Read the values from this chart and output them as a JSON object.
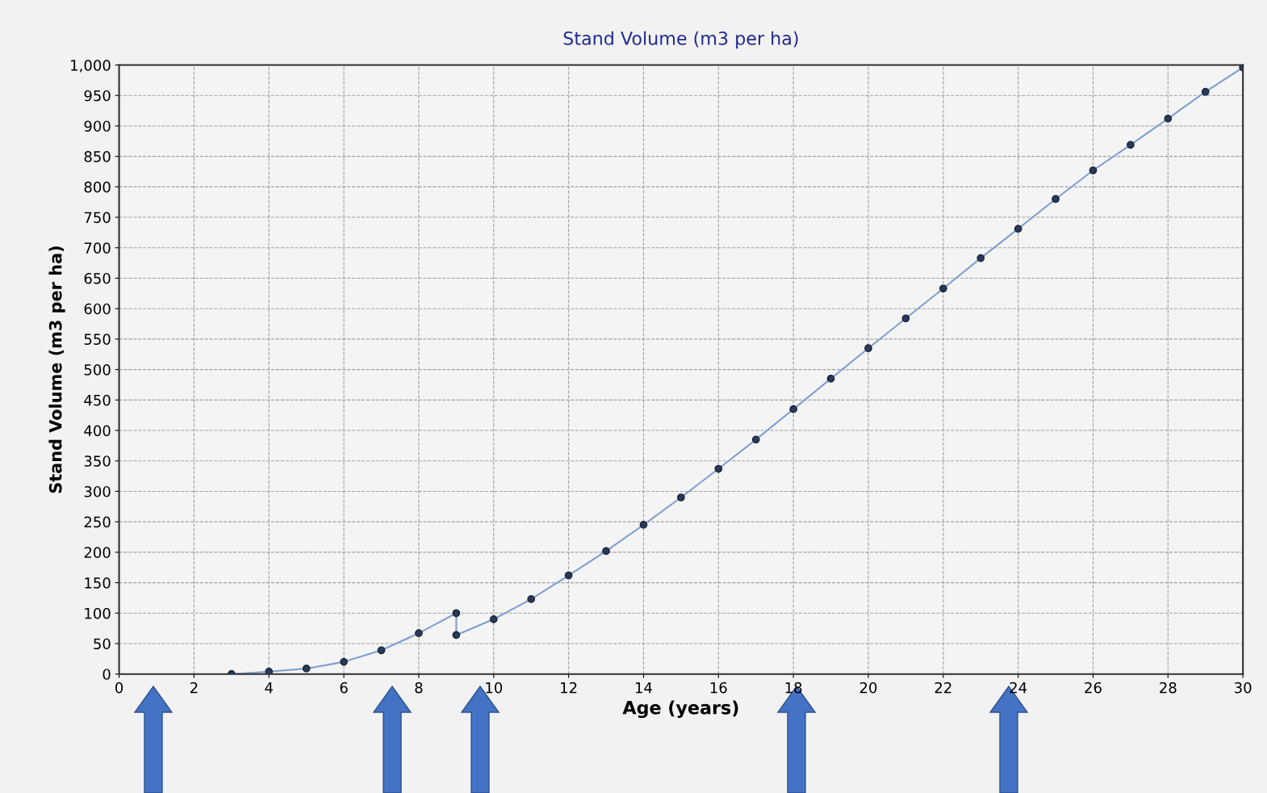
{
  "chart_data": {
    "type": "line",
    "title": "Stand Volume (m3 per ha)",
    "xlabel": "Age (years)",
    "ylabel": "Stand Volume (m3 per ha)",
    "x": [
      3,
      4,
      5,
      6,
      7,
      8,
      9,
      9,
      10,
      11,
      12,
      13,
      14,
      15,
      16,
      17,
      18,
      19,
      20,
      21,
      22,
      23,
      24,
      25,
      26,
      27,
      28,
      29,
      30
    ],
    "values": [
      0,
      4,
      9,
      20,
      39,
      67,
      100,
      64,
      90,
      123,
      162,
      202,
      245,
      290,
      337,
      385,
      435,
      485,
      535,
      584,
      633,
      683,
      731,
      780,
      827,
      869,
      912,
      956,
      996
    ],
    "color": "#7f9fcf",
    "marker": "circle",
    "line_style": "solid",
    "grid": true,
    "xlim": [
      0,
      30
    ],
    "xticks": [
      0,
      2,
      4,
      6,
      8,
      10,
      12,
      14,
      16,
      18,
      20,
      22,
      24,
      26,
      28,
      30
    ],
    "ylim": [
      0,
      1000
    ],
    "yticks": [
      0,
      50,
      100,
      150,
      200,
      250,
      300,
      350,
      400,
      450,
      500,
      550,
      600,
      650,
      700,
      750,
      800,
      850,
      900,
      950,
      {
        "value": 1000,
        "label": "1,000"
      }
    ]
  }
}
